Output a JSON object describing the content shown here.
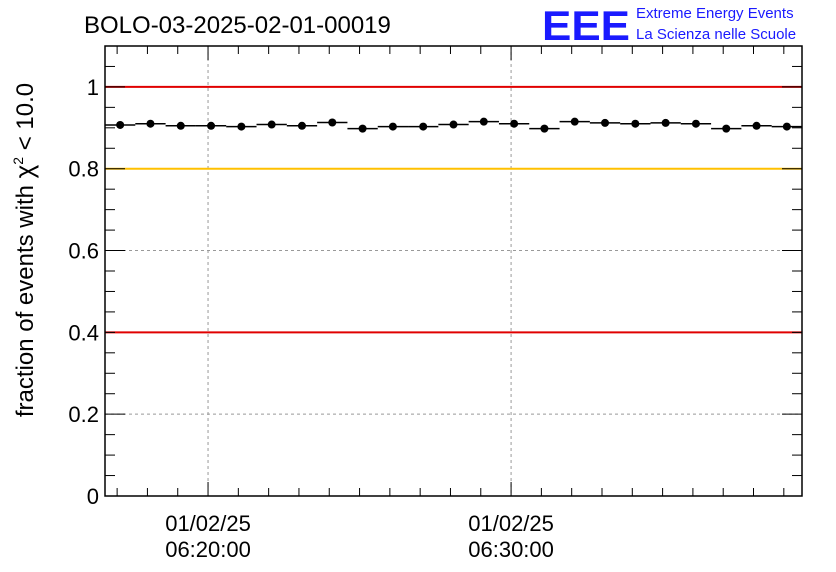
{
  "title": "BOLO-03-2025-02-01-00019",
  "logo": {
    "mark": "EEE",
    "line1": "Extreme Energy Events",
    "line2": "La Scienza nelle Scuole",
    "color": "#1a1aff"
  },
  "chart_data": {
    "type": "scatter",
    "ylabel_prefix": "fraction of events with ",
    "ylabel_symbol": "χ",
    "ylabel_sup": "2",
    "ylabel_suffix": " < 10.0",
    "ylim": [
      0,
      1.1
    ],
    "yticks": [
      {
        "value": 0,
        "label": "0"
      },
      {
        "value": 0.2,
        "label": "0.2"
      },
      {
        "value": 0.4,
        "label": "0.4"
      },
      {
        "value": 0.6,
        "label": "0.6"
      },
      {
        "value": 0.8,
        "label": "0.8"
      },
      {
        "value": 1,
        "label": "1"
      }
    ],
    "xlim_minutes": [
      6.6,
      29.6
    ],
    "xticks": [
      {
        "minute": 10,
        "date": "01/02/25",
        "time": "06:20:00"
      },
      {
        "minute": 20,
        "date": "01/02/25",
        "time": "06:30:00"
      }
    ],
    "bin_width_minutes": 1,
    "points": [
      {
        "minute": 7.1,
        "y": 0.907
      },
      {
        "minute": 8.1,
        "y": 0.91
      },
      {
        "minute": 9.1,
        "y": 0.905
      },
      {
        "minute": 10.1,
        "y": 0.905
      },
      {
        "minute": 11.1,
        "y": 0.903
      },
      {
        "minute": 12.1,
        "y": 0.908
      },
      {
        "minute": 13.1,
        "y": 0.905
      },
      {
        "minute": 14.1,
        "y": 0.913
      },
      {
        "minute": 15.1,
        "y": 0.898
      },
      {
        "minute": 16.1,
        "y": 0.903
      },
      {
        "minute": 17.1,
        "y": 0.903
      },
      {
        "minute": 18.1,
        "y": 0.908
      },
      {
        "minute": 19.1,
        "y": 0.915
      },
      {
        "minute": 20.1,
        "y": 0.91
      },
      {
        "minute": 21.1,
        "y": 0.898
      },
      {
        "minute": 22.1,
        "y": 0.915
      },
      {
        "minute": 23.1,
        "y": 0.912
      },
      {
        "minute": 24.1,
        "y": 0.91
      },
      {
        "minute": 25.1,
        "y": 0.912
      },
      {
        "minute": 26.1,
        "y": 0.91
      },
      {
        "minute": 27.1,
        "y": 0.898
      },
      {
        "minute": 28.1,
        "y": 0.905
      },
      {
        "minute": 29.1,
        "y": 0.903
      }
    ],
    "reference_lines": [
      {
        "y": 1.0,
        "color": "#e00000"
      },
      {
        "y": 0.8,
        "color": "#ffc000"
      },
      {
        "y": 0.4,
        "color": "#e00000"
      }
    ],
    "grid": true,
    "grid_values_y": [
      0.2,
      0.6
    ]
  }
}
